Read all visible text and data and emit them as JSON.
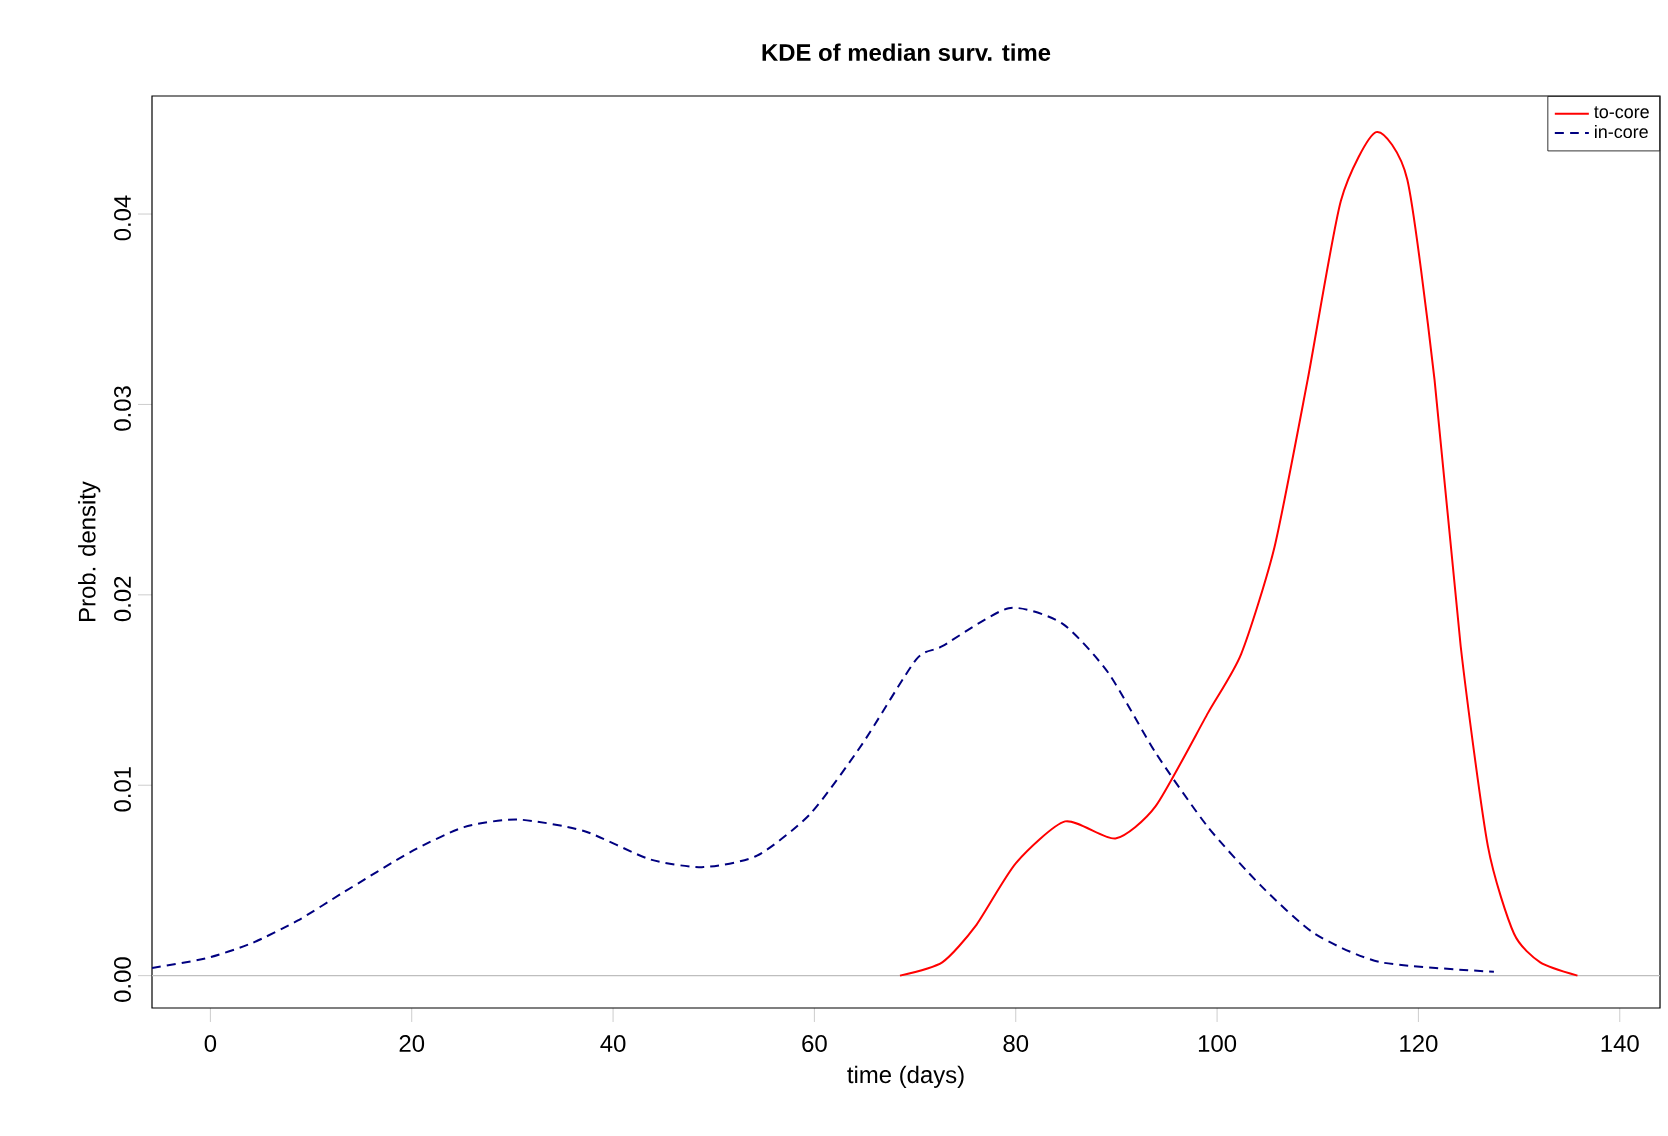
{
  "chart_data": {
    "type": "line",
    "title": "KDE of median surv. time",
    "xlabel": "time (days)",
    "ylabel": "Prob. density",
    "xlim": [
      -5.8,
      144
    ],
    "ylim": [
      -0.0017,
      0.0462
    ],
    "xticks": [
      0,
      20,
      40,
      60,
      80,
      100,
      120,
      140
    ],
    "yticks": [
      {
        "value": 0,
        "label": "0.00"
      },
      {
        "value": 0.01,
        "label": "0.01"
      },
      {
        "value": 0.02,
        "label": "0.02"
      },
      {
        "value": 0.03,
        "label": "0.03"
      },
      {
        "value": 0.04,
        "label": "0.04"
      }
    ],
    "grid": false,
    "legend": "top right",
    "marker": "none",
    "ref_lines": [
      {
        "axis": "y",
        "value": 0,
        "color": "#bebebe"
      }
    ],
    "series": [
      {
        "name": "to-core",
        "color": "#ff0000",
        "line_style": "solid",
        "x": [
          68.5,
          72.7,
          76.0,
          80.0,
          84.9,
          89.9,
          93.9,
          99.1,
          102.4,
          105.7,
          109.0,
          112.3,
          115.8,
          118.9,
          121.6,
          124.2,
          126.9,
          129.5,
          132.1,
          135.8
        ],
        "values": [
          0.0,
          0.0007,
          0.0026,
          0.0059,
          0.0081,
          0.0072,
          0.0089,
          0.0138,
          0.0169,
          0.0225,
          0.0313,
          0.0407,
          0.0443,
          0.0418,
          0.0313,
          0.0173,
          0.0068,
          0.0022,
          0.0007,
          0.0
        ]
      },
      {
        "name": "in-core",
        "color": "#000080",
        "line_style": "dashed",
        "x": [
          -5.8,
          -0.5,
          4.1,
          8.7,
          13.3,
          19.9,
          25.2,
          30.5,
          37.1,
          43.7,
          49.0,
          54.3,
          59.6,
          64.8,
          70.1,
          72.7,
          79.3,
          84.6,
          89.2,
          93.9,
          99.1,
          104.4,
          109.7,
          116.3,
          127.5
        ],
        "values": [
          0.0004,
          0.0009,
          0.0017,
          0.0029,
          0.0044,
          0.0065,
          0.0078,
          0.0082,
          0.0076,
          0.0061,
          0.0057,
          0.0063,
          0.0085,
          0.0122,
          0.0166,
          0.0173,
          0.0193,
          0.0185,
          0.0159,
          0.0117,
          0.0078,
          0.0047,
          0.0022,
          0.0007,
          0.0002
        ]
      }
    ]
  }
}
